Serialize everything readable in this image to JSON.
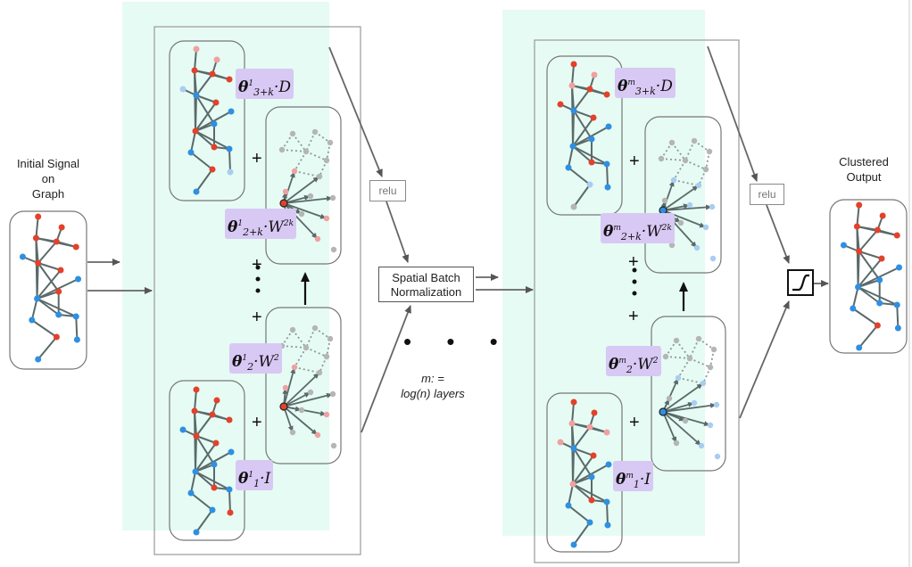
{
  "input": {
    "label_lines": [
      "Initial Signal",
      "on",
      "Graph"
    ]
  },
  "output": {
    "label_lines": [
      "Clustered",
      "Output"
    ]
  },
  "relu_label": "relu",
  "batch_norm_lines": [
    "Spatial Batch",
    "Normalization"
  ],
  "layers_note_lines": [
    "m: =",
    "log(n) layers"
  ],
  "layer1": {
    "theta_d": {
      "sup": "1",
      "sub": "3+k",
      "op": "D"
    },
    "theta_wk": {
      "sup": "1",
      "sub": "2+k",
      "op": "W",
      "op_sup": "2k"
    },
    "theta_w": {
      "sup": "1",
      "sub": "2",
      "op": "W",
      "op_sup": "2"
    },
    "theta_i": {
      "sup": "1",
      "sub": "1",
      "op": "I"
    }
  },
  "layerm": {
    "theta_d": {
      "sup": "m",
      "sub": "3+k",
      "op": "D"
    },
    "theta_wk": {
      "sup": "m",
      "sub": "2+k",
      "op": "W",
      "op_sup": "2k"
    },
    "theta_w": {
      "sup": "m",
      "sub": "2",
      "op": "W",
      "op_sup": "2"
    },
    "theta_i": {
      "sup": "m",
      "sub": "1",
      "op": "I"
    }
  },
  "symbols": {
    "plus": "+",
    "theta": "θ",
    "dot": "·"
  },
  "colors": {
    "panel": "#e6fbf3",
    "theta_bg": "#d8c8f4",
    "node_red": "#e2412b",
    "node_pink": "#f0a0a0",
    "node_blue": "#2e8fe3",
    "node_lightblue": "#a8cdf0",
    "edge": "#5a6a6a",
    "grey_node": "#b5b5b5"
  }
}
